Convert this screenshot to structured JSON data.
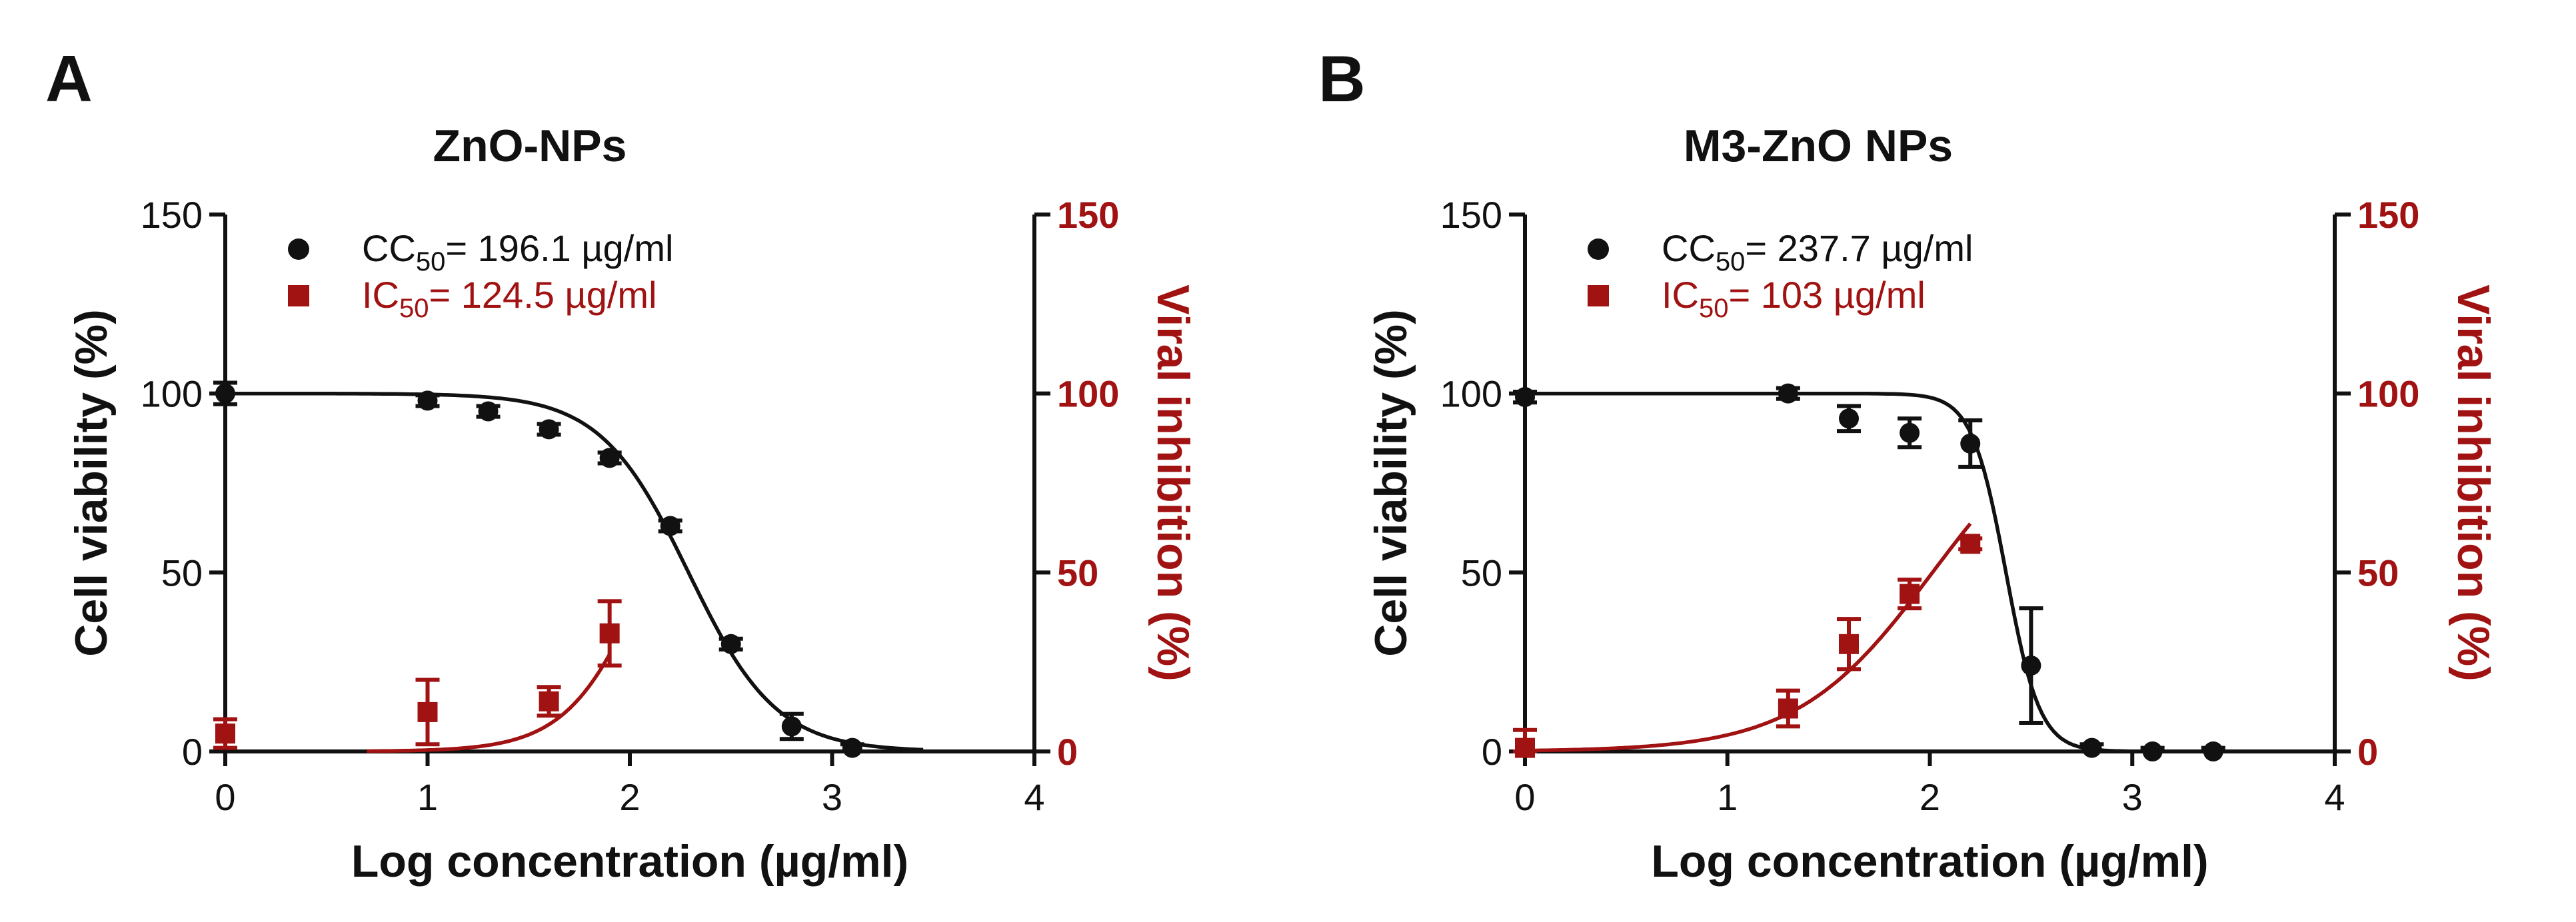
{
  "colors": {
    "black": "#111111",
    "red": "#a11212"
  },
  "chart_data": [
    {
      "type": "scatter",
      "panel_label": "A",
      "title": "ZnO-NPs",
      "xlabel": "Log concentration (µg/ml)",
      "ylabel_left": "Cell viability (%)",
      "ylabel_right": "Viral inhibition (%)",
      "xlim": [
        0,
        4
      ],
      "ylim": [
        0,
        150
      ],
      "xticks": [
        "0",
        "1",
        "2",
        "3",
        "4"
      ],
      "yticks_left": [
        "0",
        "50",
        "100",
        "150"
      ],
      "yticks_right": [
        "0",
        "50",
        "100",
        "150"
      ],
      "legend": [
        {
          "name": "CC",
          "sub": "50",
          "value": "= 196.1 µg/ml",
          "marker": "circle",
          "color": "#111111"
        },
        {
          "name": "IC",
          "sub": "50",
          "value": "= 124.5 µg/ml",
          "marker": "square",
          "color": "#a11212"
        }
      ],
      "series": [
        {
          "name": "Cell viability",
          "marker": "circle",
          "color": "#111111",
          "points": [
            {
              "x": 0,
              "y": 100,
              "err": 3
            },
            {
              "x": 1,
              "y": 98,
              "err": 1.5
            },
            {
              "x": 1.3,
              "y": 95,
              "err": 1.5
            },
            {
              "x": 1.6,
              "y": 90,
              "err": 1.5
            },
            {
              "x": 1.9,
              "y": 82,
              "err": 1.5
            },
            {
              "x": 2.2,
              "y": 63,
              "err": 1.5
            },
            {
              "x": 2.5,
              "y": 30,
              "err": 1.5
            },
            {
              "x": 2.8,
              "y": 7,
              "err": 3.5
            },
            {
              "x": 3.1,
              "y": 1,
              "err": 1
            }
          ],
          "fit": {
            "top": 100,
            "bottom": 0,
            "log_ec50": 2.29,
            "hill": -2.0,
            "x_range": [
              0,
              3.45
            ]
          }
        },
        {
          "name": "Viral inhibition",
          "marker": "square",
          "color": "#a11212",
          "points": [
            {
              "x": 0,
              "y": 5,
              "err": 4
            },
            {
              "x": 1,
              "y": 11,
              "err": 9
            },
            {
              "x": 1.6,
              "y": 14,
              "err": 4
            },
            {
              "x": 1.9,
              "y": 33,
              "err": 9
            }
          ],
          "fit": {
            "top": 100,
            "bottom": 0,
            "log_ec50": 2.095,
            "hill": 2.2,
            "x_range": [
              0.7,
              1.9
            ]
          }
        }
      ]
    },
    {
      "type": "scatter",
      "panel_label": "B",
      "title": "M3-ZnO NPs",
      "xlabel": "Log concentration (µg/ml)",
      "ylabel_left": "Cell viability (%)",
      "ylabel_right": "Viral inhibition (%)",
      "xlim": [
        0,
        4
      ],
      "ylim": [
        0,
        150
      ],
      "xticks": [
        "0",
        "1",
        "2",
        "3",
        "4"
      ],
      "yticks_left": [
        "0",
        "50",
        "100",
        "150"
      ],
      "yticks_right": [
        "0",
        "50",
        "100",
        "150"
      ],
      "legend": [
        {
          "name": "CC",
          "sub": "50",
          "value": "= 237.7 µg/ml",
          "marker": "circle",
          "color": "#111111"
        },
        {
          "name": "IC",
          "sub": "50",
          "value": "= 103 µg/ml",
          "marker": "square",
          "color": "#a11212"
        }
      ],
      "series": [
        {
          "name": "Cell viability",
          "marker": "circle",
          "color": "#111111",
          "points": [
            {
              "x": 0,
              "y": 99,
              "err": 1.5
            },
            {
              "x": 1.3,
              "y": 100,
              "err": 1.5
            },
            {
              "x": 1.6,
              "y": 93,
              "err": 3.5
            },
            {
              "x": 1.9,
              "y": 89,
              "err": 4
            },
            {
              "x": 2.2,
              "y": 86,
              "err": 6.5
            },
            {
              "x": 2.5,
              "y": 24,
              "err": 16
            },
            {
              "x": 2.8,
              "y": 1,
              "err": 1
            },
            {
              "x": 3.1,
              "y": 0,
              "err": 1
            },
            {
              "x": 3.4,
              "y": 0,
              "err": 1
            }
          ],
          "fit": {
            "top": 100,
            "bottom": 0,
            "log_ec50": 2.376,
            "hill": -5.2,
            "x_range": [
              0,
              3.05
            ]
          }
        },
        {
          "name": "Viral inhibition",
          "marker": "square",
          "color": "#a11212",
          "points": [
            {
              "x": 0,
              "y": 1,
              "err": 5
            },
            {
              "x": 1.3,
              "y": 12,
              "err": 5
            },
            {
              "x": 1.6,
              "y": 30,
              "err": 7
            },
            {
              "x": 1.9,
              "y": 44,
              "err": 4
            },
            {
              "x": 2.2,
              "y": 58,
              "err": 1.5
            }
          ],
          "fit": {
            "top": 100,
            "bottom": 0,
            "log_ec50": 2.013,
            "hill": 1.3,
            "x_range": [
              0,
              2.2
            ]
          }
        }
      ]
    }
  ]
}
